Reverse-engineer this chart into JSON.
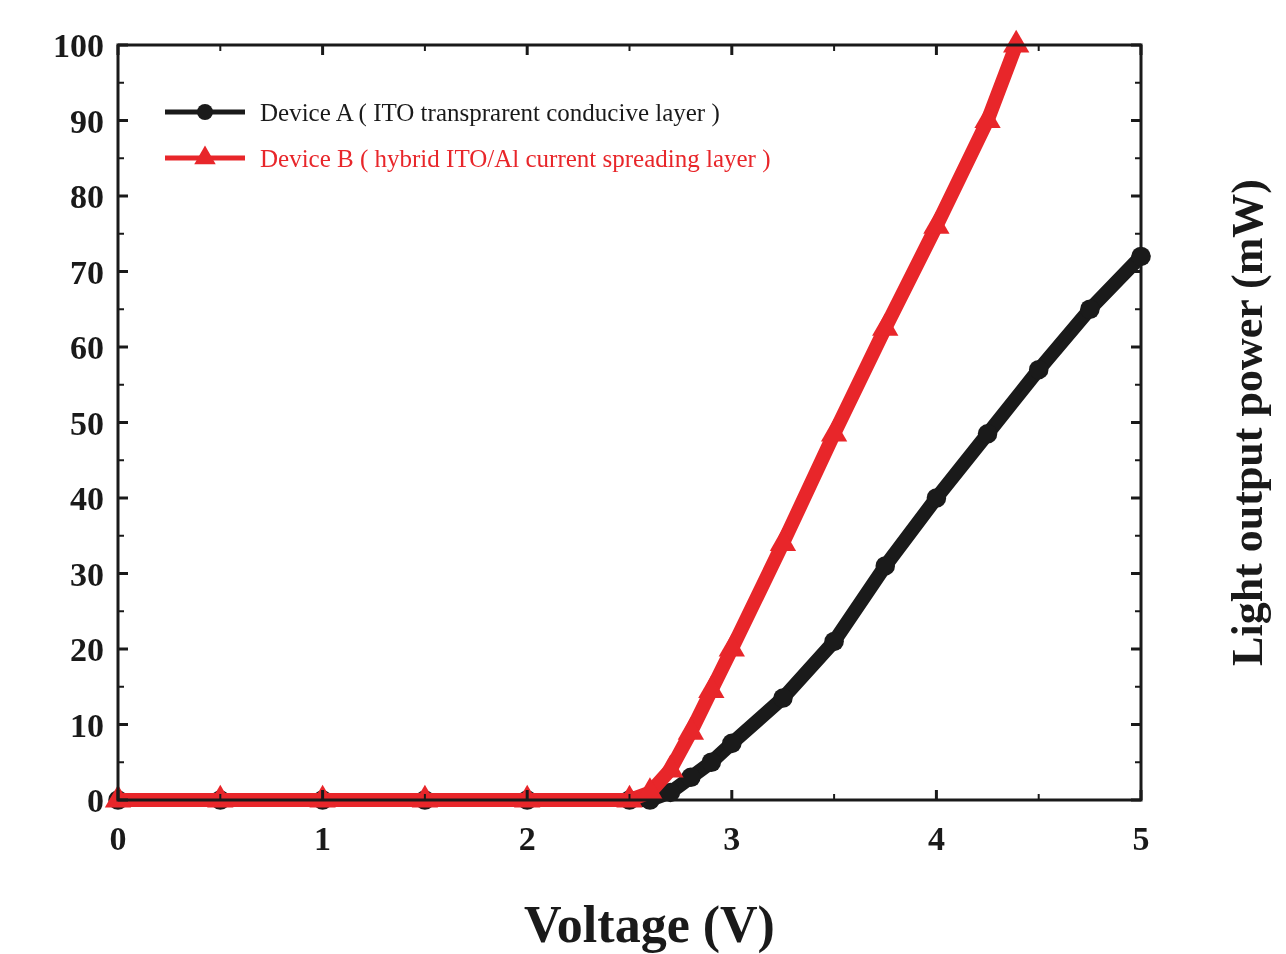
{
  "chart_data": {
    "type": "line",
    "xlabel": "Voltage (V)",
    "ylabel": "Light output power (mW)",
    "xlim": [
      0,
      5
    ],
    "ylim": [
      0,
      100
    ],
    "xticks": [
      0,
      1,
      2,
      3,
      4,
      5
    ],
    "yticks": [
      0,
      10,
      20,
      30,
      40,
      50,
      60,
      70,
      80,
      90,
      100
    ],
    "grid": false,
    "legend": "top left",
    "series": [
      {
        "name": "Device A ( ITO transprarent conducive layer )",
        "color": "#1a1a1a",
        "marker": "circle",
        "x": [
          0,
          0.5,
          1,
          1.5,
          2,
          2.5,
          2.6,
          2.7,
          2.8,
          2.9,
          3.0,
          3.25,
          3.5,
          3.75,
          4.0,
          4.25,
          4.5,
          4.75,
          5.0
        ],
        "values": [
          0,
          0,
          0,
          0,
          0,
          0,
          0,
          1,
          3,
          5,
          7.5,
          13.5,
          21,
          31,
          40,
          48.5,
          57,
          65,
          72
        ]
      },
      {
        "name": "Device B ( hybrid ITO/Al current spreading layer )",
        "color": "#e8262a",
        "marker": "triangle",
        "x": [
          0,
          0.5,
          1,
          1.5,
          2,
          2.5,
          2.6,
          2.7,
          2.8,
          2.9,
          3.0,
          3.25,
          3.5,
          3.75,
          4.0,
          4.25,
          4.39
        ],
        "values": [
          0,
          0,
          0,
          0,
          0,
          0,
          1,
          4,
          9,
          14.5,
          20,
          34,
          48.5,
          62.5,
          76,
          90,
          100
        ]
      }
    ]
  }
}
